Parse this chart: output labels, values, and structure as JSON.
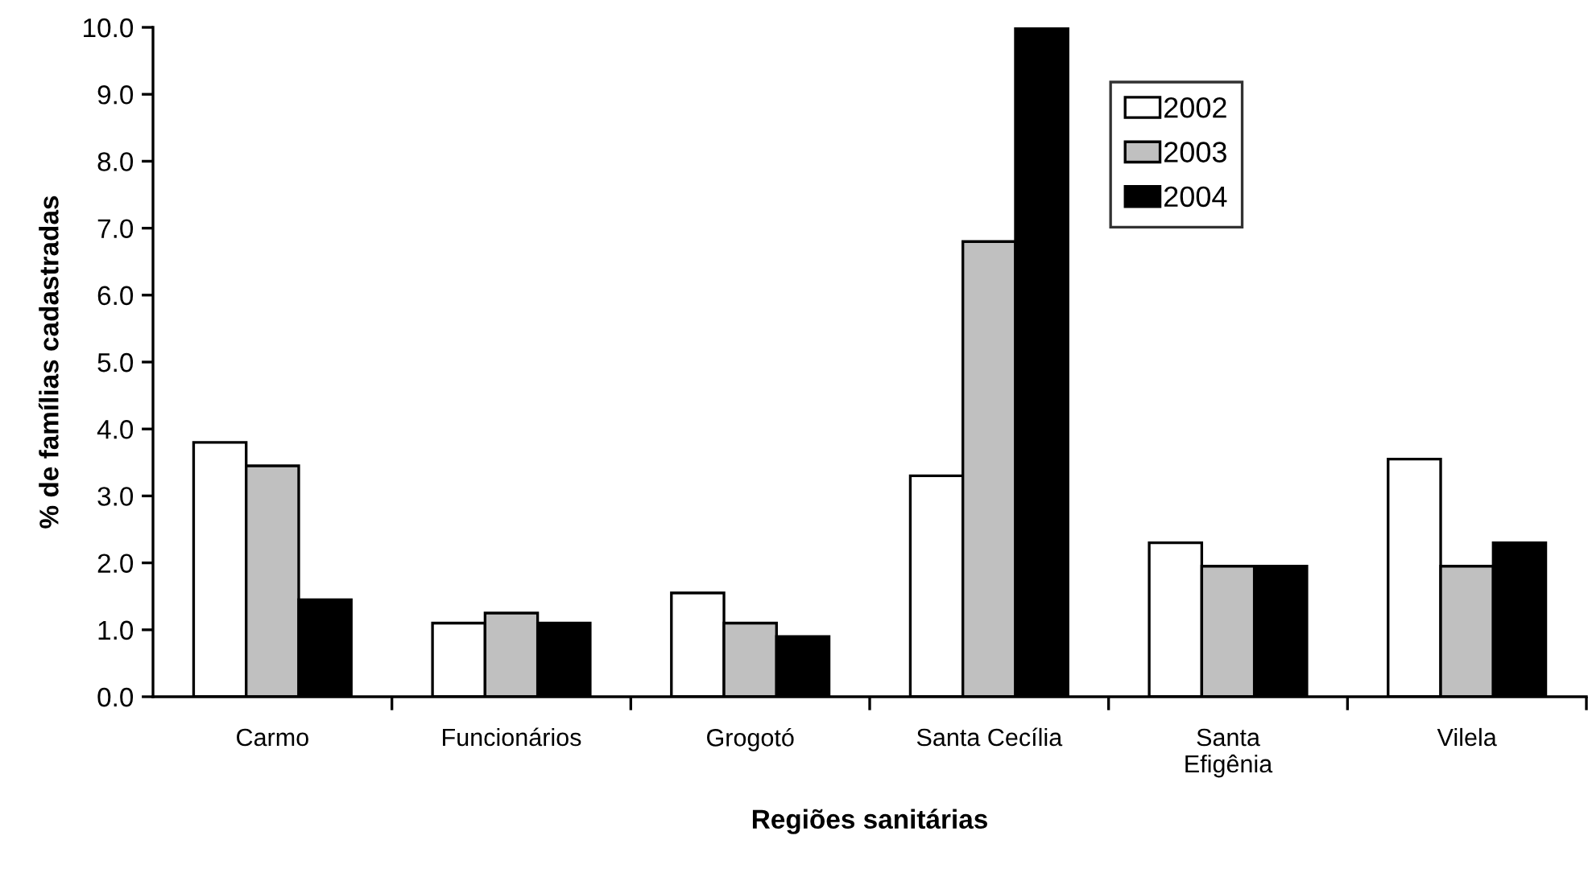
{
  "chart_data": {
    "type": "bar",
    "xlabel": "Regiões sanitárias",
    "ylabel": "% de famílias cadastradas",
    "categories": [
      "Carmo",
      "Funcionários",
      "Grogotó",
      "Santa Cecília",
      "Santa\nEfigênia",
      "Vilela"
    ],
    "series": [
      {
        "name": "2002",
        "color": "#ffffff",
        "values": [
          3.8,
          1.1,
          1.55,
          3.3,
          2.3,
          3.55
        ]
      },
      {
        "name": "2003",
        "color": "#c0c0c0",
        "values": [
          3.45,
          1.25,
          1.1,
          6.8,
          1.95,
          1.95
        ]
      },
      {
        "name": "2004",
        "color": "#000000",
        "values": [
          1.45,
          1.1,
          0.9,
          10.0,
          1.95,
          2.3
        ]
      }
    ],
    "ylim": [
      0,
      10
    ],
    "yticks": [
      {
        "value": 0,
        "label": "0.0"
      },
      {
        "value": 1,
        "label": "1.0"
      },
      {
        "value": 2,
        "label": "2.0"
      },
      {
        "value": 3,
        "label": "3.0"
      },
      {
        "value": 4,
        "label": "4.0"
      },
      {
        "value": 5,
        "label": "5.0"
      },
      {
        "value": 6,
        "label": "6.0"
      },
      {
        "value": 7,
        "label": "7.0"
      },
      {
        "value": 8,
        "label": "8.0"
      },
      {
        "value": 9,
        "label": "9.0"
      },
      {
        "value": 10,
        "label": "10.0"
      }
    ],
    "legend": "top right",
    "grid": false
  }
}
